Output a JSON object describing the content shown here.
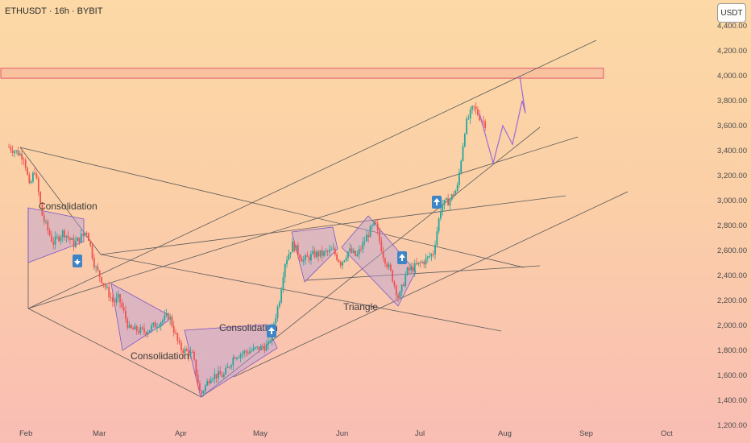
{
  "header": {
    "symbol_label": "ETHUSDT · 16h · BYBIT",
    "unit_label": "USDT"
  },
  "chart_data": {
    "type": "candlestick",
    "title": "ETHUSDT · 16h · BYBIT",
    "ylabel": "USDT",
    "ylim": [
      1200,
      4400
    ],
    "yticks": [
      "4,400.00",
      "4,200.00",
      "4,000.00",
      "3,800.00",
      "3,600.00",
      "3,400.00",
      "3,200.00",
      "3,000.00",
      "2,800.00",
      "2,600.00",
      "2,400.00",
      "2,200.00",
      "2,000.00",
      "1,800.00",
      "1,600.00",
      "1,400.00",
      "1,200.00"
    ],
    "xticks": [
      "Feb",
      "Mar",
      "Apr",
      "May",
      "Jun",
      "Jul",
      "Aug",
      "Sep",
      "Oct"
    ],
    "colors": {
      "up": "#26a69a",
      "down": "#ef5350",
      "pattern_fill": "#b39ddb",
      "pattern_stroke": "#7e57c2",
      "resistance": "#e05b6f",
      "arrow_bg": "#3d85c6"
    },
    "price_path": [
      [
        "Jan 26",
        3430
      ],
      [
        "Feb 1",
        3350
      ],
      [
        "Feb 3",
        3100
      ],
      [
        "Feb 5",
        3250
      ],
      [
        "Feb 8",
        2870
      ],
      [
        "Feb 12",
        2660
      ],
      [
        "Feb 16",
        2750
      ],
      [
        "Feb 20",
        2650
      ],
      [
        "Feb 25",
        2760
      ],
      [
        "Feb 28",
        2470
      ],
      [
        "Mar 3",
        2350
      ],
      [
        "Mar 7",
        2180
      ],
      [
        "Mar 9",
        2220
      ],
      [
        "Mar 13",
        1970
      ],
      [
        "Mar 19",
        1950
      ],
      [
        "Mar 24",
        2020
      ],
      [
        "Mar 28",
        2080
      ],
      [
        "Apr 1",
        1820
      ],
      [
        "Apr 6",
        1760
      ],
      [
        "Apr 9",
        1440
      ],
      [
        "Apr 13",
        1600
      ],
      [
        "Apr 18",
        1600
      ],
      [
        "Apr 22",
        1760
      ],
      [
        "Apr 27",
        1790
      ],
      [
        "May 2",
        1820
      ],
      [
        "May 5",
        1840
      ],
      [
        "May 9",
        2200
      ],
      [
        "May 11",
        2500
      ],
      [
        "May 14",
        2650
      ],
      [
        "May 18",
        2520
      ],
      [
        "May 22",
        2570
      ],
      [
        "May 25",
        2570
      ],
      [
        "May 29",
        2600
      ],
      [
        "Jun 1",
        2500
      ],
      [
        "Jun 4",
        2600
      ],
      [
        "Jun 7",
        2550
      ],
      [
        "Jun 11",
        2720
      ],
      [
        "Jun 14",
        2820
      ],
      [
        "Jun 17",
        2570
      ],
      [
        "Jun 20",
        2420
      ],
      [
        "Jun 23",
        2210
      ],
      [
        "Jun 26",
        2430
      ],
      [
        "Jun 30",
        2480
      ],
      [
        "Jul 3",
        2520
      ],
      [
        "Jul 6",
        2580
      ],
      [
        "Jul 9",
        2960
      ],
      [
        "Jul 12",
        3000
      ],
      [
        "Jul 15",
        3100
      ],
      [
        "Jul 18",
        3600
      ],
      [
        "Jul 21",
        3750
      ],
      [
        "Jul 24",
        3650
      ],
      [
        "Jul 26",
        3600
      ]
    ],
    "resistance_zone": [
      3980,
      4060
    ],
    "annotations": [
      "Consolidation",
      "Consolidation",
      "Consolidation",
      "Triangle"
    ],
    "forecast_path": [
      3700,
      3300,
      3600,
      3450,
      3800,
      3700,
      4000
    ]
  }
}
